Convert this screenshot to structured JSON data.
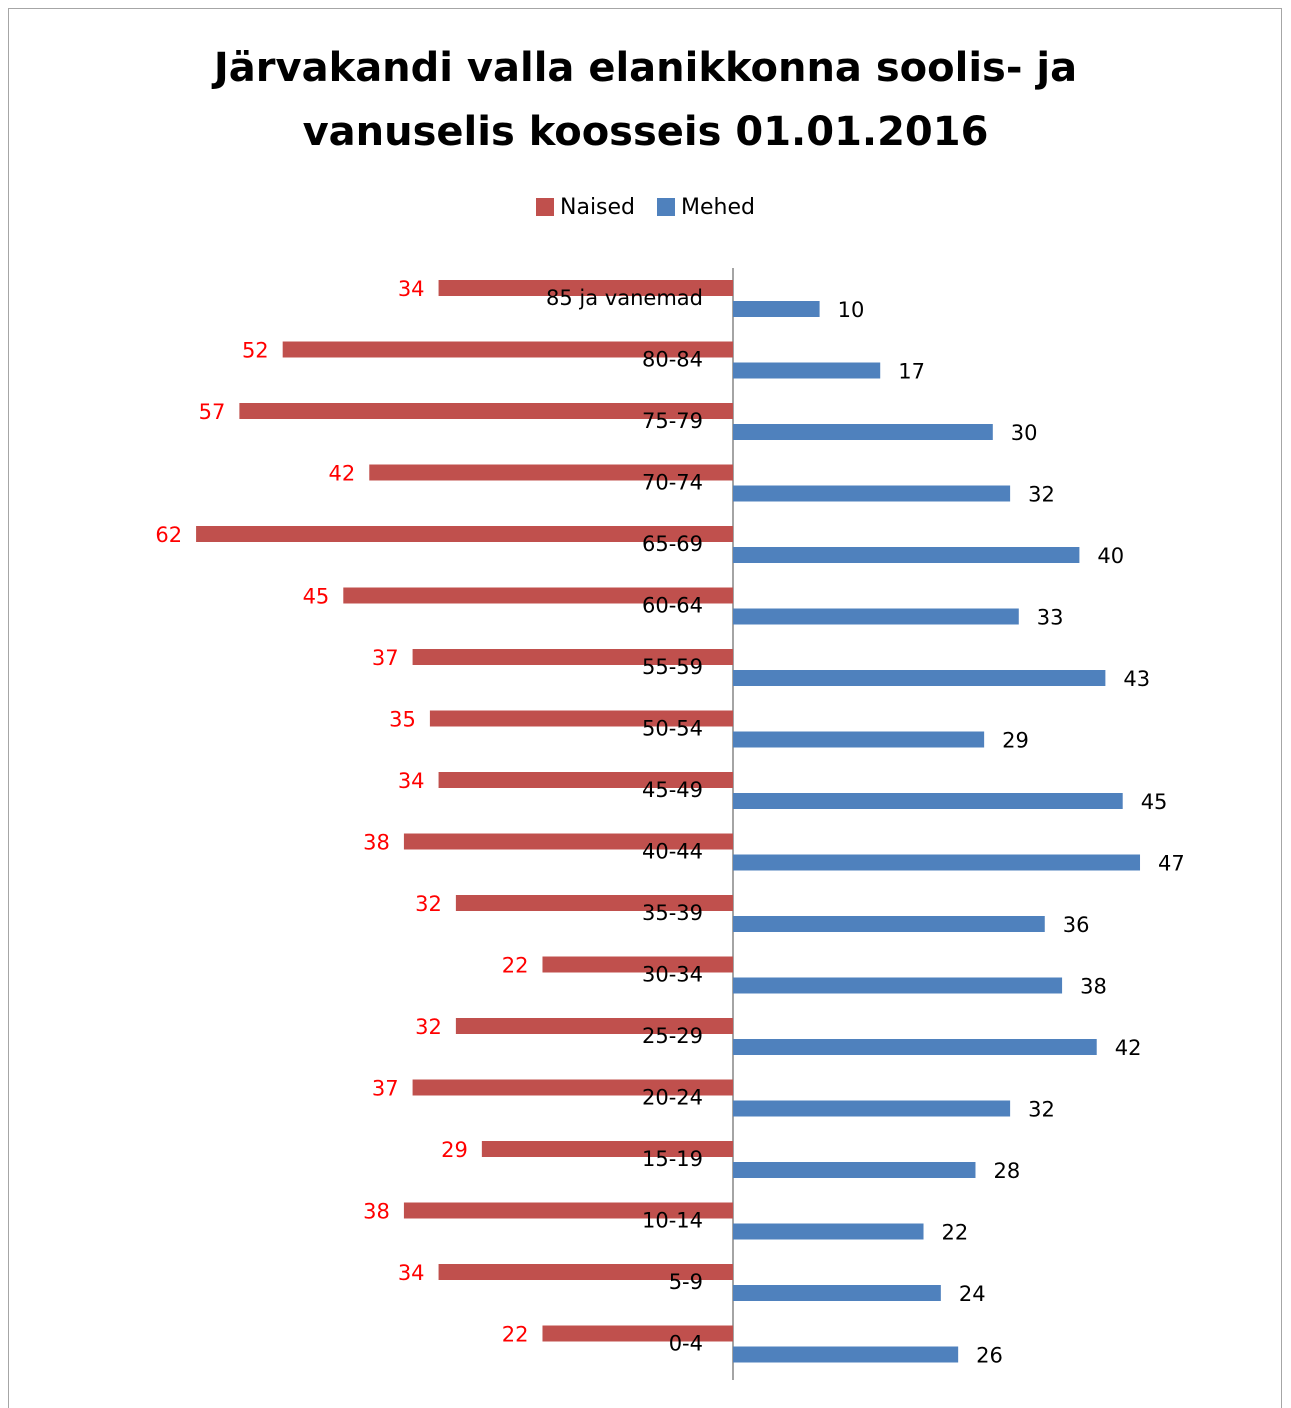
{
  "chart_data": {
    "type": "bar",
    "orientation": "horizontal",
    "title_line1": "Järvakandi valla elanikkonna soolis- ja",
    "title_line2": "vanuselis koosseis 01.01.2016",
    "legend_position": "top",
    "grid": false,
    "categories": [
      "85 ja vanemad",
      "80-84",
      "75-79",
      "70-74",
      "65-69",
      "60-64",
      "55-59",
      "50-54",
      "45-49",
      "40-44",
      "35-39",
      "30-34",
      "25-29",
      "20-24",
      "15-19",
      "10-14",
      "5-9",
      "0-4"
    ],
    "series": [
      {
        "name": "Naised",
        "color": "#c0504d",
        "label_color": "#ff0000",
        "direction": "left",
        "values": [
          34,
          52,
          57,
          42,
          62,
          45,
          37,
          35,
          34,
          38,
          32,
          22,
          32,
          37,
          29,
          38,
          34,
          22
        ]
      },
      {
        "name": "Mehed",
        "color": "#4f81bd",
        "label_color": "#000000",
        "direction": "right",
        "values": [
          10,
          17,
          30,
          32,
          40,
          33,
          43,
          29,
          45,
          47,
          36,
          38,
          42,
          32,
          28,
          22,
          24,
          26
        ]
      }
    ]
  }
}
